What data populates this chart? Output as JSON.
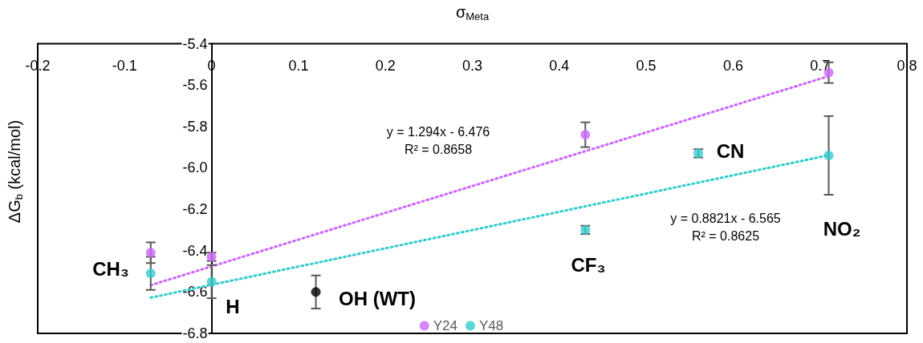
{
  "chart_data": {
    "type": "scatter",
    "xlabel": "σ$_{Meta}$",
    "ylabel": "ΔG$_{b}$ (kcal/mol)",
    "xlim": [
      -0.2,
      0.8
    ],
    "xticks": [
      -0.2,
      -0.1,
      0,
      0.1,
      0.2,
      0.3,
      0.4,
      0.5,
      0.6,
      0.7,
      0.8
    ],
    "ylim": [
      -6.8,
      -5.4
    ],
    "yticks": [
      -6.8,
      -6.6,
      -6.4,
      -6.2,
      {
        "value": -6,
        "label": "-6.0"
      },
      -5.8,
      -5.6,
      -5.4
    ],
    "grid": false,
    "legend": "bottom",
    "marker": "circle",
    "series": [
      {
        "name": "Y24",
        "color": "#cc66ff",
        "x": [
          -0.07,
          0,
          0.43,
          0.71
        ],
        "values": [
          -6.41,
          -6.43,
          -5.84,
          -5.54
        ],
        "errors": [
          0.05,
          0.02,
          0.06,
          0.05
        ]
      },
      {
        "name": "Y48",
        "color": "#33cccc",
        "x": [
          -0.07,
          0,
          0.43,
          0.56,
          0.71
        ],
        "values": [
          -6.51,
          -6.55,
          -6.3,
          -5.93,
          -5.94
        ],
        "errors": [
          0.08,
          0.08,
          0.02,
          0.02,
          0.19
        ]
      },
      {
        "color": "#000000",
        "x": [
          0.12
        ],
        "values": [
          -6.6
        ],
        "errors": [
          0.08
        ]
      },
      {
        "type": "line",
        "color": "#cc66ff",
        "line_style": "dotted",
        "marker": "none",
        "x": [
          -0.07,
          0.71
        ],
        "values": [
          -6.567,
          -5.557
        ]
      },
      {
        "type": "line",
        "color": "#33cccc",
        "line_style": "dotted",
        "marker": "none",
        "x": [
          -0.07,
          0.71
        ],
        "values": [
          -6.627,
          -5.939
        ]
      }
    ],
    "annotations": [
      "CH₃",
      "H",
      "OH (WT)",
      "CF₃",
      "CN",
      "NO₂",
      "y = 1.294x - 6.476\nR² = 0.8658",
      "y = 0.8821x - 6.565\nR² = 0.8625"
    ]
  }
}
